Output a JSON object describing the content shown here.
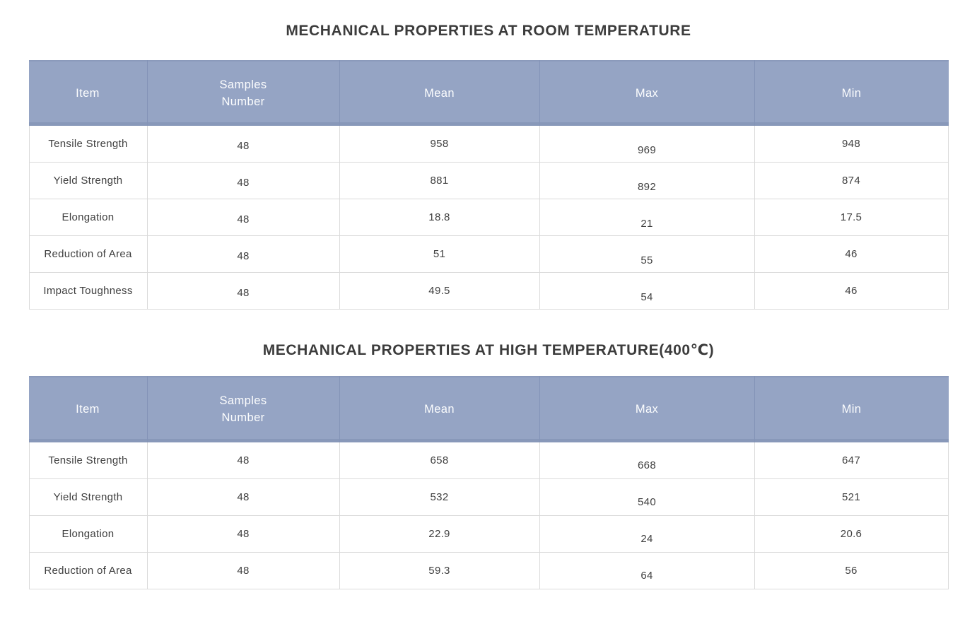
{
  "colors": {
    "header_bg": "#95a4c4",
    "header_divider": "#8393b7",
    "header_text": "#fcfdfe",
    "body_border": "#dadada",
    "body_text": "#3f3f3f",
    "title_text": "#3c3c3c",
    "page_bg": "#ffffff"
  },
  "tables": [
    {
      "title": "MECHANICAL PROPERTIES AT ROOM TEMPERATURE",
      "columns": [
        "Item",
        "Samples\nNumber",
        "Mean",
        "Max",
        "Min"
      ],
      "rows": [
        [
          "Tensile Strength",
          "48",
          "958",
          "969",
          "948"
        ],
        [
          "Yield Strength",
          "48",
          "881",
          "892",
          "874"
        ],
        [
          "Elongation",
          "48",
          "18.8",
          "21",
          "17.5"
        ],
        [
          "Reduction of Area",
          "48",
          "51",
          "55",
          "46"
        ],
        [
          "Impact Toughness",
          "48",
          "49.5",
          "54",
          "46"
        ]
      ]
    },
    {
      "title": "MECHANICAL PROPERTIES AT HIGH TEMPERATURE(400℃)",
      "columns": [
        "Item",
        "Samples\nNumber",
        "Mean",
        "Max",
        "Min"
      ],
      "rows": [
        [
          "Tensile Strength",
          "48",
          "658",
          "668",
          "647"
        ],
        [
          "Yield Strength",
          "48",
          "532",
          "540",
          "521"
        ],
        [
          "Elongation",
          "48",
          "22.9",
          "24",
          "20.6"
        ],
        [
          "Reduction of Area",
          "48",
          "59.3",
          "64",
          "56"
        ]
      ]
    }
  ]
}
